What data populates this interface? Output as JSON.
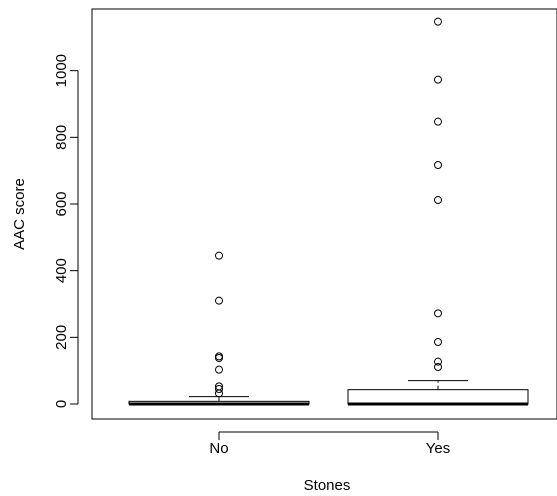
{
  "chart_data": {
    "type": "boxplot",
    "xlabel": "Stones",
    "ylabel": "AAC score",
    "categories": [
      "No",
      "Yes"
    ],
    "yticks": [
      0,
      200,
      400,
      600,
      800,
      1000
    ],
    "ylim": [
      -45,
      1185
    ],
    "boxes": [
      {
        "category": "No",
        "min": 0,
        "q1": 0,
        "median": 0,
        "q3": 8,
        "whisker_high": 22,
        "outliers": [
          445,
          310,
          143,
          138,
          103,
          53,
          45,
          32
        ]
      },
      {
        "category": "Yes",
        "min": 0,
        "q1": 0,
        "median": 0,
        "q3": 43,
        "whisker_high": 70,
        "outliers": [
          1147,
          973,
          847,
          717,
          612,
          272,
          186,
          127,
          111
        ]
      }
    ],
    "grid": false,
    "legend": "none"
  }
}
